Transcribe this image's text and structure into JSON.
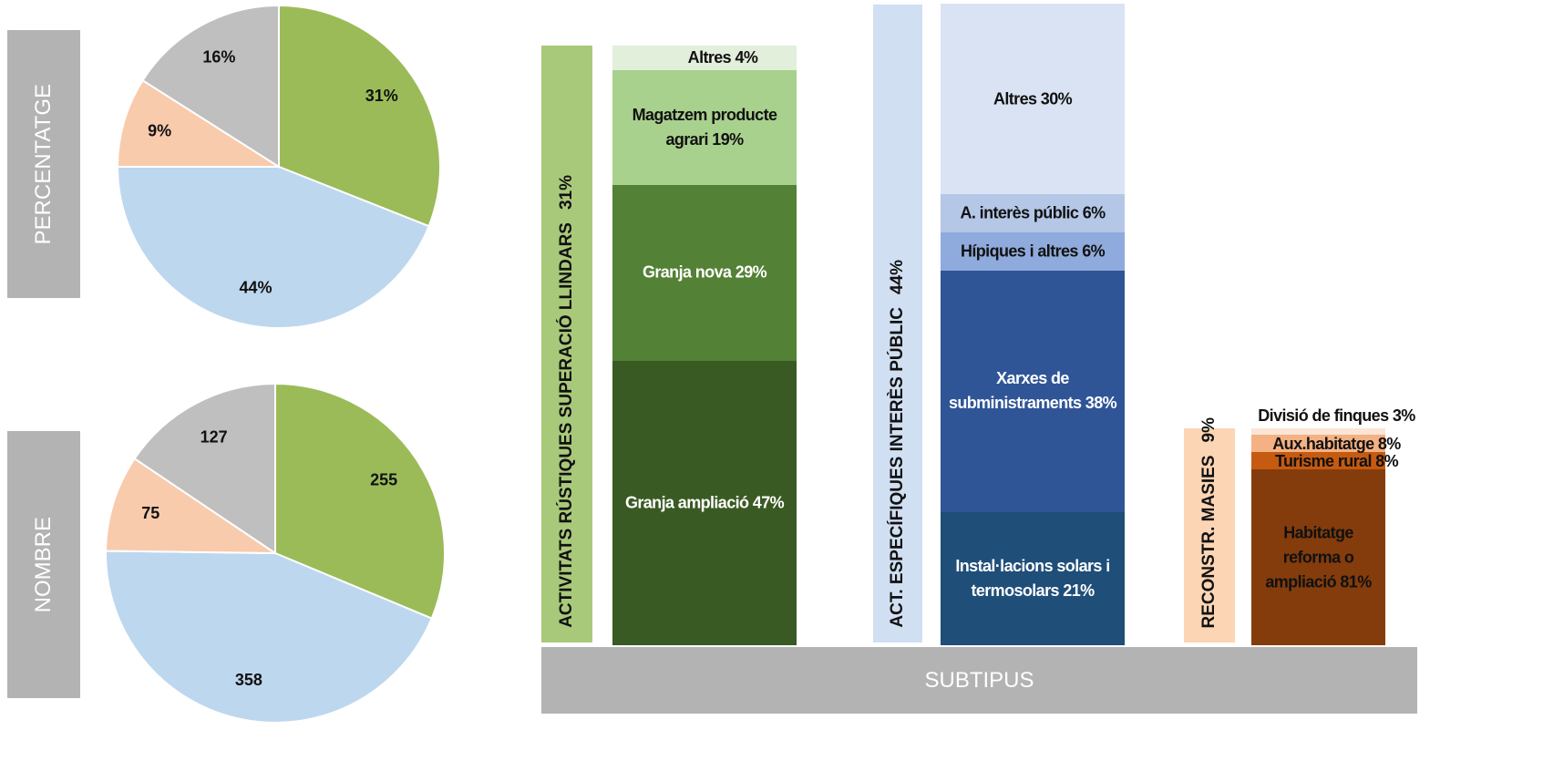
{
  "chart_data": [
    {
      "type": "pie",
      "label": "PERCENTATGE",
      "values": [
        31,
        44,
        9,
        16
      ],
      "value_labels": [
        "31%",
        "44%",
        "9%",
        "16%"
      ],
      "colors": [
        "#9bbb59",
        "#bdd7ee",
        "#f8cbad",
        "#bfbfbf"
      ]
    },
    {
      "type": "pie",
      "label": "NOMBRE",
      "values": [
        255,
        358,
        75,
        127
      ],
      "colors": [
        "#9bbb59",
        "#bdd7ee",
        "#f8cbad",
        "#bfbfbf"
      ]
    },
    {
      "type": "stacked",
      "label": "ACTIVITATS RÚSTIQUES SUPERACIÓ LLINDARS",
      "value": 31,
      "value_label": "31%",
      "color": "#a9c97a",
      "values": [
        47,
        29,
        19,
        4
      ],
      "value_labels": [
        "Granja ampliació 47%",
        "Granja nova 29%",
        "Magatzem producte agrari 19%",
        "Altres 4%"
      ],
      "colors": [
        "#3a5a23",
        "#538135",
        "#a9d18e",
        "#e2efda"
      ]
    },
    {
      "type": "stacked",
      "label": "ACT. ESPECÍFIQUES INTERÈS PÚBLIC",
      "value": 44,
      "value_label": "44%",
      "color": "#d0dff2",
      "values": [
        21,
        38,
        6,
        6,
        30
      ],
      "value_labels": [
        "Instal·lacions solars i termosolars 21%",
        "Xarxes de subministraments 38%",
        "Hípiques i altres 6%",
        "A. interès públic 6%",
        "Altres 30%"
      ],
      "colors": [
        "#1f4e79",
        "#2f5597",
        "#8faadc",
        "#b4c7e7",
        "#dae3f3"
      ]
    },
    {
      "type": "stacked",
      "label": "RECONSTR. MASIES",
      "value": 9,
      "value_label": "9%",
      "color": "#fcd5b4",
      "values": [
        81,
        8,
        8,
        3
      ],
      "value_labels": [
        "Habitatge reforma o ampliació 81%",
        "Turisme rural 8%",
        "Aux.habitatge 8%",
        "Divisió de finques 3%"
      ],
      "colors": [
        "#843c0c",
        "#c55a11",
        "#f4b183",
        "#fbe5d6"
      ]
    }
  ],
  "footer": "SUBTIPUS"
}
